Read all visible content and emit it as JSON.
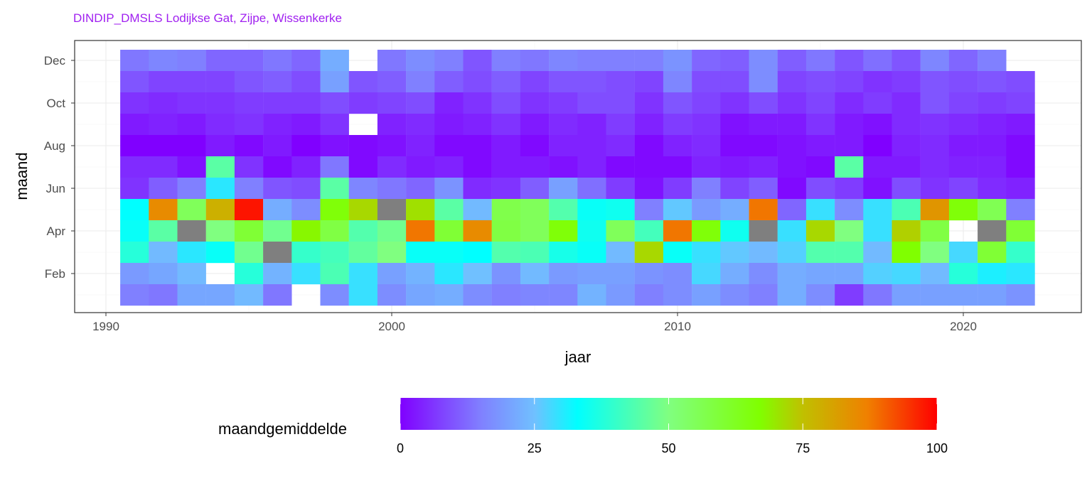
{
  "chart_data": {
    "type": "heatmap",
    "title": "DINDIP_DMSLS Lodijkse Gat, Zijpe, Wissenkerke",
    "title_color": "#a020f0",
    "xlabel": "jaar",
    "ylabel": "maand",
    "x_ticks": [
      1990,
      2000,
      2010,
      2020
    ],
    "x_tick_labels": [
      "1990",
      "2000",
      "2010",
      "2020"
    ],
    "xlim": [
      1989,
      2024.2
    ],
    "y_tick_labels": [
      "Feb",
      "Apr",
      "Jun",
      "Aug",
      "Oct",
      "Dec"
    ],
    "y_tick_months": [
      2,
      4,
      6,
      8,
      10,
      12
    ],
    "years": [
      1991,
      1992,
      1993,
      1994,
      1995,
      1996,
      1997,
      1998,
      1999,
      2000,
      2001,
      2002,
      2003,
      2004,
      2005,
      2006,
      2007,
      2008,
      2009,
      2010,
      2011,
      2012,
      2013,
      2014,
      2015,
      2016,
      2017,
      2018,
      2019,
      2020,
      2021,
      2022
    ],
    "months_top_to_bottom": [
      12,
      11,
      10,
      9,
      8,
      7,
      6,
      5,
      4,
      3,
      2,
      1
    ],
    "values": [
      [
        14,
        16,
        15,
        12,
        12,
        14,
        12,
        22,
        null,
        14,
        17,
        15,
        10,
        15,
        14,
        16,
        15,
        15,
        15,
        18,
        12,
        11,
        17,
        11,
        14,
        10,
        13,
        10,
        16,
        12,
        15,
        null
      ],
      [
        10,
        8,
        8,
        8,
        10,
        11,
        9,
        20,
        10,
        11,
        15,
        11,
        9,
        11,
        8,
        10,
        10,
        9,
        8,
        16,
        9,
        9,
        17,
        8,
        9,
        8,
        6,
        7,
        10,
        9,
        10,
        9
      ],
      [
        6,
        5,
        6,
        6,
        7,
        7,
        7,
        9,
        7,
        8,
        9,
        4,
        6,
        9,
        6,
        7,
        9,
        9,
        6,
        10,
        8,
        6,
        9,
        6,
        8,
        5,
        7,
        5,
        10,
        8,
        7,
        8
      ],
      [
        3,
        4,
        3,
        5,
        6,
        4,
        3,
        6,
        null,
        4,
        5,
        3,
        4,
        6,
        3,
        5,
        4,
        7,
        4,
        7,
        6,
        2,
        3,
        3,
        6,
        3,
        2,
        5,
        6,
        5,
        4,
        3
      ],
      [
        0,
        0,
        0,
        3,
        1,
        3,
        0,
        2,
        1,
        2,
        4,
        1,
        1,
        3,
        1,
        4,
        4,
        5,
        1,
        4,
        5,
        1,
        1,
        2,
        3,
        3,
        0,
        4,
        5,
        3,
        3,
        1
      ],
      [
        5,
        5,
        2,
        45,
        6,
        1,
        4,
        14,
        1,
        5,
        3,
        4,
        1,
        3,
        3,
        2,
        4,
        1,
        1,
        1,
        4,
        3,
        4,
        2,
        1,
        45,
        3,
        3,
        5,
        4,
        4,
        1
      ],
      [
        6,
        11,
        15,
        30,
        15,
        10,
        9,
        45,
        16,
        14,
        12,
        18,
        5,
        6,
        11,
        20,
        13,
        7,
        2,
        7,
        15,
        8,
        11,
        1,
        9,
        7,
        2,
        9,
        6,
        8,
        5,
        4
      ],
      [
        33,
        85,
        55,
        78,
        98,
        22,
        17,
        66,
        72,
        "NA",
        71,
        45,
        24,
        57,
        55,
        44,
        34,
        35,
        15,
        26,
        19,
        22,
        88,
        12,
        29,
        17,
        29,
        43,
        83,
        66,
        56,
        15
      ],
      [
        34,
        45,
        "NA",
        50,
        60,
        48,
        68,
        58,
        44,
        48,
        88,
        60,
        85,
        58,
        55,
        66,
        35,
        55,
        42,
        88,
        66,
        35,
        "NA",
        29,
        72,
        50,
        29,
        73,
        58,
        null,
        "NA",
        60
      ],
      [
        38,
        24,
        30,
        34,
        48,
        "NA",
        40,
        42,
        46,
        50,
        34,
        34,
        33,
        44,
        43,
        36,
        34,
        24,
        72,
        34,
        29,
        26,
        24,
        27,
        44,
        44,
        24,
        67,
        50,
        28,
        60,
        40
      ],
      [
        19,
        21,
        24,
        null,
        38,
        23,
        29,
        43,
        29,
        20,
        23,
        30,
        25,
        18,
        24,
        19,
        20,
        20,
        18,
        17,
        28,
        22,
        17,
        22,
        21,
        21,
        27,
        28,
        24,
        38,
        31,
        30
      ],
      [
        15,
        14,
        21,
        21,
        24,
        14,
        null,
        17,
        29,
        17,
        21,
        22,
        17,
        15,
        16,
        16,
        23,
        19,
        15,
        17,
        20,
        17,
        15,
        22,
        17,
        7,
        14,
        20,
        20,
        20,
        20,
        18
      ]
    ],
    "na_color": "#7f7f7f",
    "legend": {
      "title": "maandgemiddelde",
      "placement": "bottom",
      "range": [
        0,
        100
      ],
      "ticks": [
        0,
        25,
        50,
        75,
        100
      ],
      "tick_labels": [
        "0",
        "25",
        "50",
        "75",
        "100"
      ],
      "color_stops": [
        {
          "v": 0,
          "c": "#8000ff"
        },
        {
          "v": 15,
          "c": "#8080ff"
        },
        {
          "v": 25,
          "c": "#70c0ff"
        },
        {
          "v": 33,
          "c": "#00ffff"
        },
        {
          "v": 50,
          "c": "#80ff80"
        },
        {
          "v": 67,
          "c": "#80ff00"
        },
        {
          "v": 75,
          "c": "#c0c000"
        },
        {
          "v": 87,
          "c": "#f08000"
        },
        {
          "v": 100,
          "c": "#ff0000"
        }
      ]
    }
  }
}
